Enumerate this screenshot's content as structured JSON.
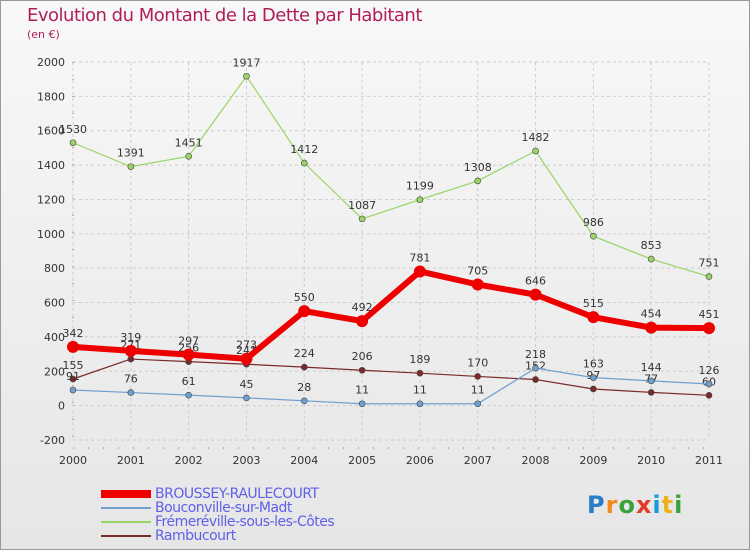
{
  "title": "Evolution du Montant de la Dette par Habitant",
  "subtitle": "(en €)",
  "logo_text": "Proxiti",
  "chart_data": {
    "type": "line",
    "x": [
      "2000",
      "2001",
      "2002",
      "2003",
      "2004",
      "2005",
      "2006",
      "2007",
      "2008",
      "2009",
      "2010",
      "2011"
    ],
    "ylim": [
      -200,
      2000
    ],
    "yticks": [
      "-200",
      "0",
      "200",
      "400",
      "600",
      "800",
      "1000",
      "1200",
      "1400",
      "1600",
      "1800",
      "2000"
    ],
    "grid": true,
    "legend_position": "bottom-left",
    "series": [
      {
        "name": "Frémeréville-sous-les-Côtes",
        "color": "#99d466",
        "width": 1.2,
        "values": [
          1530,
          1391,
          1451,
          1917,
          1412,
          1087,
          1199,
          1308,
          1482,
          986,
          853,
          751
        ],
        "labels": [
          "1530",
          "1391",
          "1451",
          "1917",
          "1412",
          "1087",
          "1199",
          "1308",
          "1482",
          "986",
          "853",
          "751"
        ]
      },
      {
        "name": "Rambucourt",
        "color": "#7a2a2a",
        "width": 1.2,
        "values": [
          155,
          271,
          256,
          241,
          224,
          206,
          189,
          170,
          152,
          97,
          77,
          60
        ],
        "labels": [
          "155",
          "271",
          "256",
          "241",
          "224",
          "206",
          "189",
          "170",
          "152",
          "97",
          "77",
          "60"
        ]
      },
      {
        "name": "Bouconville-sur-Madt",
        "color": "#6fa0d0",
        "width": 1.2,
        "values": [
          91,
          76,
          61,
          45,
          28,
          11,
          11,
          11,
          218,
          163,
          144,
          126
        ],
        "labels": [
          "91",
          "76",
          "61",
          "45",
          "28",
          "11",
          "11",
          "11",
          "218",
          "163",
          "144",
          "126"
        ]
      },
      {
        "name": "BROUSSEY-RAULECOURT",
        "color": "#ee0000",
        "width": 6,
        "values": [
          342,
          319,
          297,
          273,
          550,
          492,
          781,
          705,
          646,
          515,
          454,
          451
        ],
        "labels": [
          "342",
          "319",
          "297",
          "273",
          "550",
          "492",
          "781",
          "705",
          "646",
          "515",
          "454",
          "451"
        ]
      }
    ],
    "legend": [
      {
        "name": "BROUSSEY-RAULECOURT",
        "color": "#ee0000"
      },
      {
        "name": "Bouconville-sur-Madt",
        "color": "#6fa0d0"
      },
      {
        "name": "Frémeréville-sous-les-Côtes",
        "color": "#99d466"
      },
      {
        "name": "Rambucourt",
        "color": "#7a2a2a"
      }
    ]
  }
}
